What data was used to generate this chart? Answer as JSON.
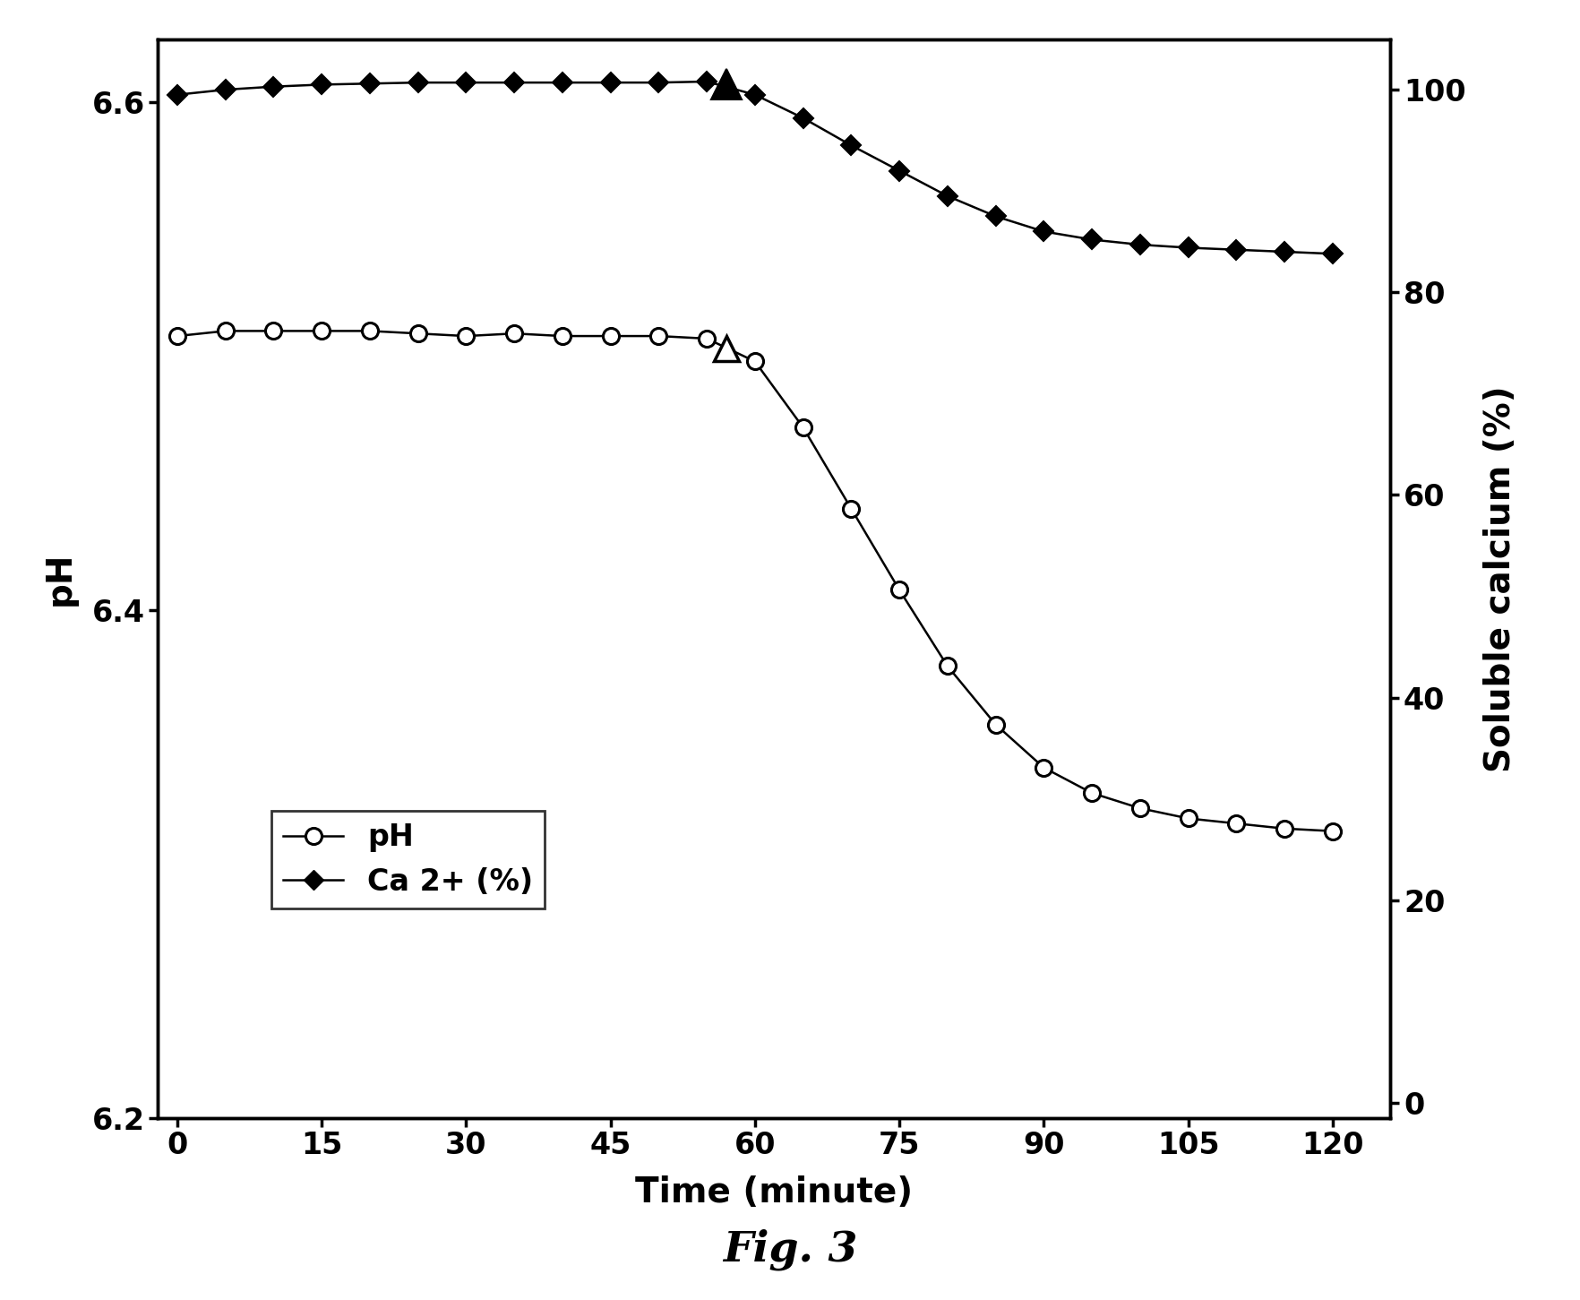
{
  "ph_time": [
    0,
    5,
    10,
    15,
    20,
    25,
    30,
    35,
    40,
    45,
    50,
    55,
    60,
    65,
    70,
    75,
    80,
    85,
    90,
    95,
    100,
    105,
    110,
    115,
    120
  ],
  "ph_values": [
    6.508,
    6.51,
    6.51,
    6.51,
    6.51,
    6.509,
    6.508,
    6.509,
    6.508,
    6.508,
    6.508,
    6.507,
    6.498,
    6.472,
    6.44,
    6.408,
    6.378,
    6.355,
    6.338,
    6.328,
    6.322,
    6.318,
    6.316,
    6.314,
    6.313
  ],
  "ca_time": [
    0,
    5,
    10,
    15,
    20,
    25,
    30,
    35,
    40,
    45,
    50,
    55,
    60,
    65,
    70,
    75,
    80,
    85,
    90,
    95,
    100,
    105,
    110,
    115,
    120
  ],
  "ca_values": [
    99.5,
    100.0,
    100.3,
    100.5,
    100.6,
    100.7,
    100.7,
    100.7,
    100.7,
    100.7,
    100.7,
    100.8,
    99.5,
    97.2,
    94.5,
    92.0,
    89.5,
    87.5,
    86.0,
    85.2,
    84.7,
    84.4,
    84.2,
    84.0,
    83.8
  ],
  "triangle_open_time": 57,
  "triangle_open_ph": 6.503,
  "triangle_filled_time": 57,
  "triangle_filled_ca": 100.5,
  "xlabel": "Time (minute)",
  "ylabel_left": "pH",
  "ylabel_right": "Soluble calcium (%)",
  "title": "Fig. 3",
  "xlim": [
    -2,
    126
  ],
  "xticks": [
    0,
    15,
    30,
    45,
    60,
    75,
    90,
    105,
    120
  ],
  "ylim_left": [
    6.2,
    6.625
  ],
  "yticks_left": [
    6.2,
    6.4,
    6.6
  ],
  "ylim_right": [
    -1.5,
    105
  ],
  "yticks_right": [
    0,
    20,
    40,
    60,
    80,
    100
  ],
  "line_color": "#000000",
  "marker_size_circle": 13,
  "marker_size_diamond": 11,
  "line_width": 1.8,
  "legend_ph": "pH",
  "legend_ca": "Ca 2+ (%)"
}
